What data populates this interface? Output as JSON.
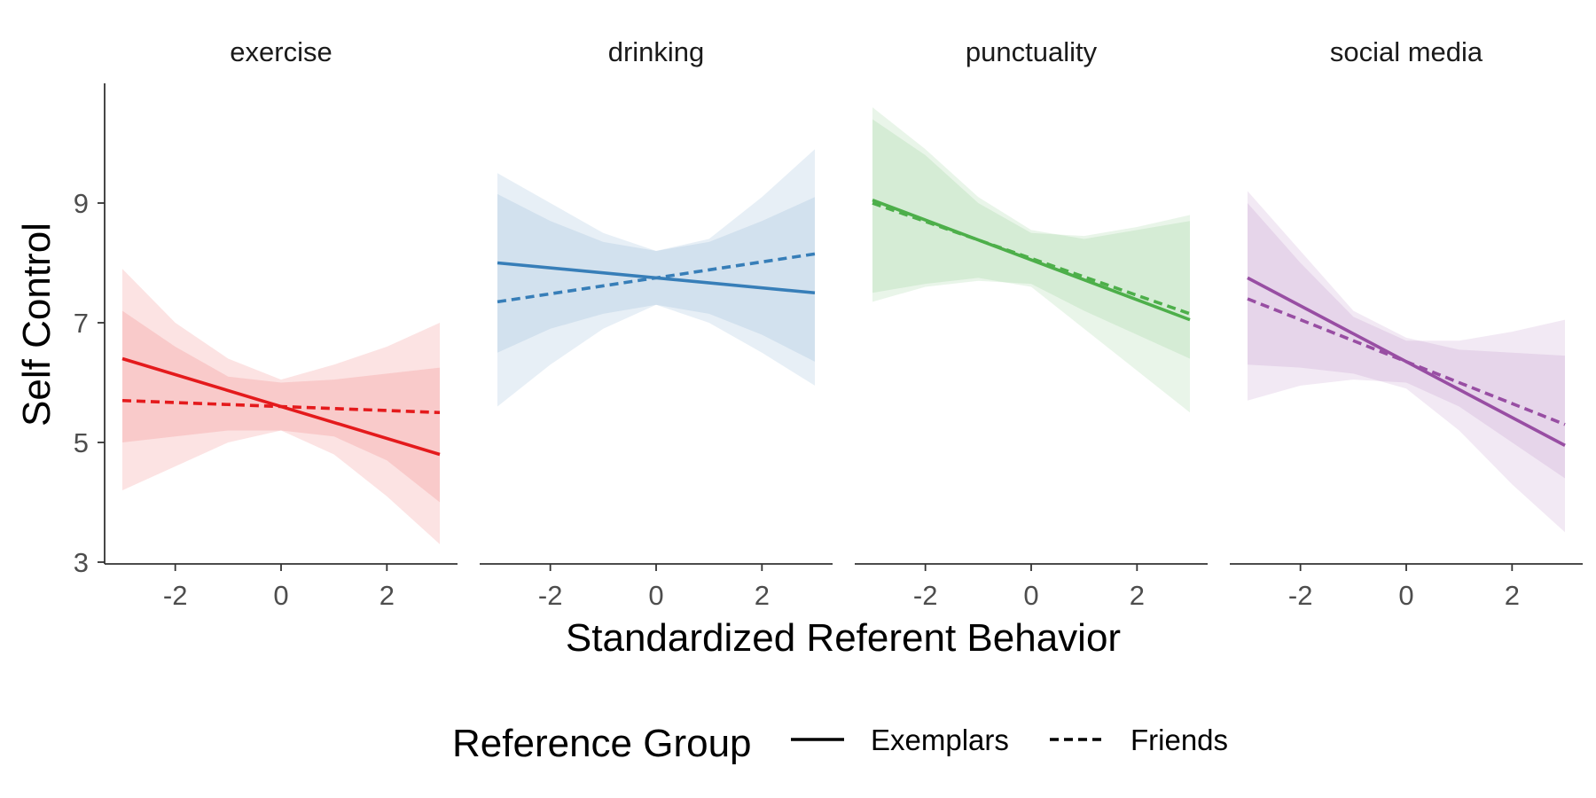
{
  "chart_data": {
    "type": "line",
    "xlabel": "Standardized Referent Behavior",
    "ylabel": "Self Control",
    "xlim": [
      -3,
      3
    ],
    "ylim": [
      3,
      11
    ],
    "x_ticks": [
      -2,
      0,
      2
    ],
    "x_tick_labels": [
      "-2",
      "0",
      "2"
    ],
    "y_ticks": [
      3,
      5,
      7,
      9
    ],
    "y_tick_labels": [
      "3",
      "5",
      "7",
      "9"
    ],
    "grid": false,
    "legend": {
      "title": "Reference Group",
      "placement": "bottom",
      "entries": [
        {
          "label": "Exemplars",
          "linetype": "solid"
        },
        {
          "label": "Friends",
          "linetype": "dashed"
        }
      ]
    },
    "panels": [
      {
        "name": "exercise",
        "color": "#e41a1c",
        "series": [
          {
            "name": "Exemplars",
            "linetype": "solid",
            "x": [
              -3,
              3
            ],
            "y": [
              6.4,
              4.8
            ],
            "band_x": [
              -3,
              -2,
              -1,
              0,
              1,
              2,
              3
            ],
            "band_lower": [
              4.2,
              4.6,
              5.0,
              5.2,
              4.8,
              4.1,
              3.3
            ],
            "band_upper": [
              7.9,
              7.0,
              6.4,
              6.05,
              6.3,
              6.6,
              7.0
            ]
          },
          {
            "name": "Friends",
            "linetype": "dashed",
            "x": [
              -3,
              3
            ],
            "y": [
              5.7,
              5.5
            ],
            "band_x": [
              -3,
              -2,
              -1,
              0,
              1,
              2,
              3
            ],
            "band_lower": [
              5.0,
              5.1,
              5.2,
              5.2,
              5.1,
              4.7,
              4.0
            ],
            "band_upper": [
              7.2,
              6.6,
              6.1,
              6.0,
              6.05,
              6.15,
              6.25
            ]
          }
        ]
      },
      {
        "name": "drinking",
        "color": "#377eb8",
        "series": [
          {
            "name": "Exemplars",
            "linetype": "solid",
            "x": [
              -3,
              3
            ],
            "y": [
              8.0,
              7.5
            ],
            "band_x": [
              -3,
              -2,
              -1,
              0,
              1,
              2,
              3
            ],
            "band_lower": [
              5.6,
              6.3,
              6.9,
              7.3,
              7.0,
              6.5,
              5.95
            ],
            "band_upper": [
              9.5,
              9.0,
              8.5,
              8.2,
              8.4,
              9.1,
              9.9
            ]
          },
          {
            "name": "Friends",
            "linetype": "dashed",
            "x": [
              -3,
              3
            ],
            "y": [
              7.35,
              8.15
            ],
            "band_x": [
              -3,
              -2,
              -1,
              0,
              1,
              2,
              3
            ],
            "band_lower": [
              6.5,
              6.9,
              7.15,
              7.3,
              7.15,
              6.8,
              6.35
            ],
            "band_upper": [
              9.15,
              8.7,
              8.35,
              8.2,
              8.35,
              8.7,
              9.1
            ]
          }
        ]
      },
      {
        "name": "punctuality",
        "color": "#4daf4a",
        "series": [
          {
            "name": "Exemplars",
            "linetype": "solid",
            "x": [
              -3,
              3
            ],
            "y": [
              9.05,
              7.05
            ],
            "band_x": [
              -3,
              -2,
              -1,
              0,
              1,
              2,
              3
            ],
            "band_lower": [
              7.5,
              7.65,
              7.75,
              7.6,
              6.9,
              6.2,
              5.5
            ],
            "band_upper": [
              10.6,
              9.9,
              9.1,
              8.55,
              8.4,
              8.55,
              8.7
            ]
          },
          {
            "name": "Friends",
            "linetype": "dashed",
            "x": [
              -3,
              3
            ],
            "y": [
              9.0,
              7.15
            ],
            "band_x": [
              -3,
              -2,
              -1,
              0,
              1,
              2,
              3
            ],
            "band_lower": [
              7.35,
              7.6,
              7.7,
              7.65,
              7.2,
              6.8,
              6.4
            ],
            "band_upper": [
              10.4,
              9.8,
              9.0,
              8.5,
              8.45,
              8.6,
              8.8
            ]
          }
        ]
      },
      {
        "name": "social media",
        "color": "#984ea3",
        "series": [
          {
            "name": "Exemplars",
            "linetype": "solid",
            "x": [
              -3,
              3
            ],
            "y": [
              7.75,
              4.95
            ],
            "band_x": [
              -3,
              -2,
              -1,
              0,
              1,
              2,
              3
            ],
            "band_lower": [
              6.3,
              6.25,
              6.15,
              5.9,
              5.2,
              4.3,
              3.5
            ],
            "band_upper": [
              9.2,
              8.2,
              7.2,
              6.75,
              6.55,
              6.5,
              6.45
            ]
          },
          {
            "name": "Friends",
            "linetype": "dashed",
            "x": [
              -3,
              3
            ],
            "y": [
              7.4,
              5.3
            ],
            "band_x": [
              -3,
              -2,
              -1,
              0,
              1,
              2,
              3
            ],
            "band_lower": [
              5.7,
              5.95,
              6.05,
              6.0,
              5.6,
              5.0,
              4.4
            ],
            "band_upper": [
              9.0,
              8.0,
              7.1,
              6.7,
              6.7,
              6.85,
              7.05
            ]
          }
        ]
      }
    ]
  }
}
